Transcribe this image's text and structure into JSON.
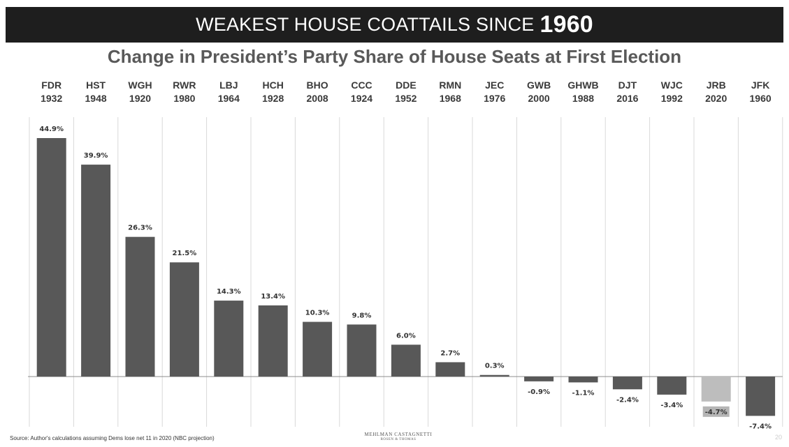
{
  "banner": {
    "title": "WEAKEST HOUSE COATTAILS SINCE",
    "year": "1960"
  },
  "chart_data": {
    "type": "bar",
    "title": "Change in President’s Party Share of House Seats at First Election",
    "ylim": [
      -8.5,
      45
    ],
    "grid": "vertical column separators",
    "categories": [
      {
        "initials": "FDR",
        "year": "1932"
      },
      {
        "initials": "HST",
        "year": "1948"
      },
      {
        "initials": "WGH",
        "year": "1920"
      },
      {
        "initials": "RWR",
        "year": "1980"
      },
      {
        "initials": "LBJ",
        "year": "1964"
      },
      {
        "initials": "HCH",
        "year": "1928"
      },
      {
        "initials": "BHO",
        "year": "2008"
      },
      {
        "initials": "CCC",
        "year": "1924"
      },
      {
        "initials": "DDE",
        "year": "1952"
      },
      {
        "initials": "RMN",
        "year": "1968"
      },
      {
        "initials": "JEC",
        "year": "1976"
      },
      {
        "initials": "GWB",
        "year": "2000"
      },
      {
        "initials": "GHWB",
        "year": "1988"
      },
      {
        "initials": "DJT",
        "year": "2016"
      },
      {
        "initials": "WJC",
        "year": "1992"
      },
      {
        "initials": "JRB",
        "year": "2020"
      },
      {
        "initials": "JFK",
        "year": "1960"
      }
    ],
    "values": [
      44.9,
      39.9,
      26.3,
      21.5,
      14.3,
      13.4,
      10.3,
      9.8,
      6.0,
      2.7,
      0.3,
      -0.9,
      -1.1,
      -2.4,
      -3.4,
      -4.7,
      -7.4
    ],
    "labels": [
      "44.9%",
      "39.9%",
      "26.3%",
      "21.5%",
      "14.3%",
      "13.4%",
      "10.3%",
      "9.8%",
      "6.0%",
      "2.7%",
      "0.3%",
      "-0.9%",
      "-1.1%",
      "-2.4%",
      "-3.4%",
      "-4.7%",
      "-7.4%"
    ],
    "highlight_index": 15,
    "colors": {
      "bar": "#585858",
      "highlight": "#bdbdbd",
      "highlight_label_bg": "#b5b5b5",
      "separator": "#d9d9d9",
      "label": "#333333"
    }
  },
  "footer": {
    "source": "Source: Author's calculations assuming Dems lose net 11 in 2020 (NBC projection)",
    "firm": "MEHLMAN CASTAGNETTI",
    "firm_sub": "ROSEN & THOMAS",
    "page": "20"
  }
}
